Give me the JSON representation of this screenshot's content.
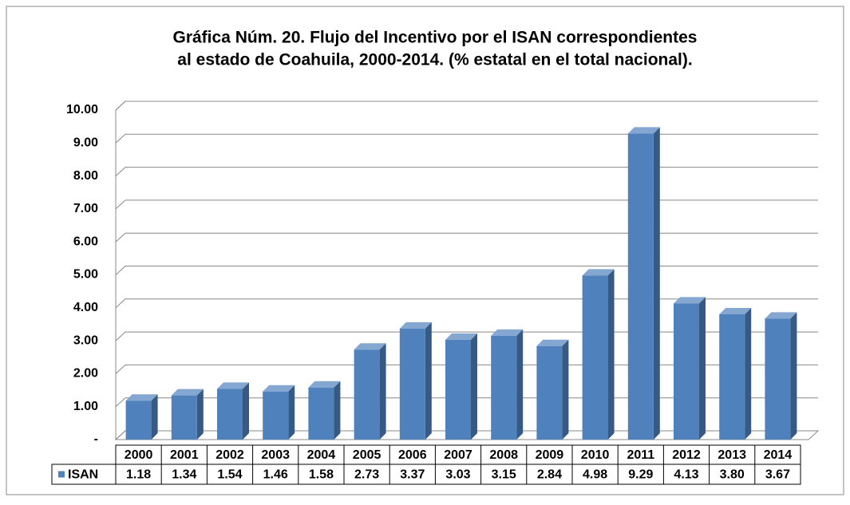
{
  "chart_data": {
    "type": "bar3d",
    "title": [
      "Gráfica Núm. 20. Flujo del Incentivo por el ISAN correspondientes",
      "al estado de Coahuila, 2000-2014. (% estatal en el total nacional)."
    ],
    "categories": [
      "2000",
      "2001",
      "2002",
      "2003",
      "2004",
      "2005",
      "2006",
      "2007",
      "2008",
      "2009",
      "2010",
      "2011",
      "2012",
      "2013",
      "2014"
    ],
    "series": [
      {
        "name": "ISAN",
        "color": "#4f81bd",
        "values": [
          1.18,
          1.34,
          1.54,
          1.46,
          1.58,
          2.73,
          3.37,
          3.03,
          3.15,
          2.84,
          4.98,
          9.29,
          4.13,
          3.8,
          3.67
        ],
        "value_labels": [
          "1.18",
          "1.34",
          "1.54",
          "1.46",
          "1.58",
          "2.73",
          "3.37",
          "3.03",
          "3.15",
          "2.84",
          "4.98",
          "9.29",
          "4.13",
          "3.80",
          "3.67"
        ]
      }
    ],
    "ylim": [
      0,
      10
    ],
    "yticks": [
      {
        "value": 0,
        "label": "-"
      },
      {
        "value": 1,
        "label": "1.00"
      },
      {
        "value": 2,
        "label": "2.00"
      },
      {
        "value": 3,
        "label": "3.00"
      },
      {
        "value": 4,
        "label": "4.00"
      },
      {
        "value": 5,
        "label": "5.00"
      },
      {
        "value": 6,
        "label": "6.00"
      },
      {
        "value": 7,
        "label": "7.00"
      },
      {
        "value": 8,
        "label": "8.00"
      },
      {
        "value": 9,
        "label": "9.00"
      },
      {
        "value": 10,
        "label": "10.00"
      }
    ],
    "grid": true
  }
}
